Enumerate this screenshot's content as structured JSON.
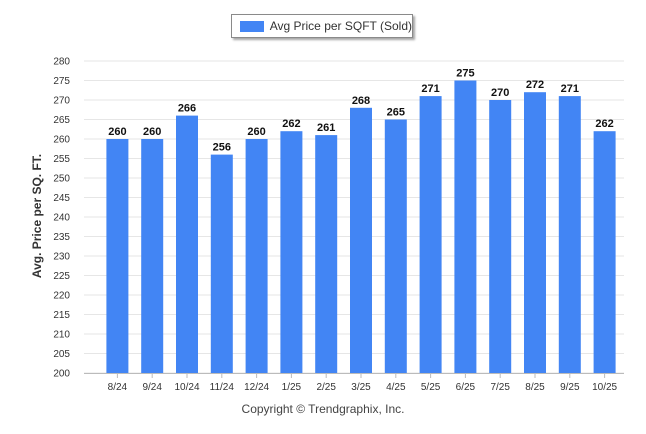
{
  "chart_data": {
    "type": "bar",
    "categories": [
      "8/24",
      "9/24",
      "10/24",
      "11/24",
      "12/24",
      "1/25",
      "2/25",
      "3/25",
      "4/25",
      "5/25",
      "6/25",
      "7/25",
      "8/25",
      "9/25",
      "10/25"
    ],
    "series": [
      {
        "name": "Avg Price per SQFT (Sold)",
        "values": [
          260,
          260,
          266,
          256,
          260,
          262,
          261,
          268,
          265,
          271,
          275,
          270,
          272,
          271,
          262
        ],
        "color": "#4285f4"
      }
    ],
    "title": "",
    "xlabel": "",
    "ylabel": "Avg. Price per SQ. FT.",
    "ylim": [
      200,
      280
    ],
    "yticks": [
      200,
      205,
      210,
      215,
      220,
      225,
      230,
      235,
      240,
      245,
      250,
      255,
      260,
      265,
      270,
      275,
      280
    ],
    "grid": true,
    "legend": "top-center",
    "data_labels": true
  },
  "footer": {
    "copyright": "Copyright © Trendgraphix, Inc."
  }
}
